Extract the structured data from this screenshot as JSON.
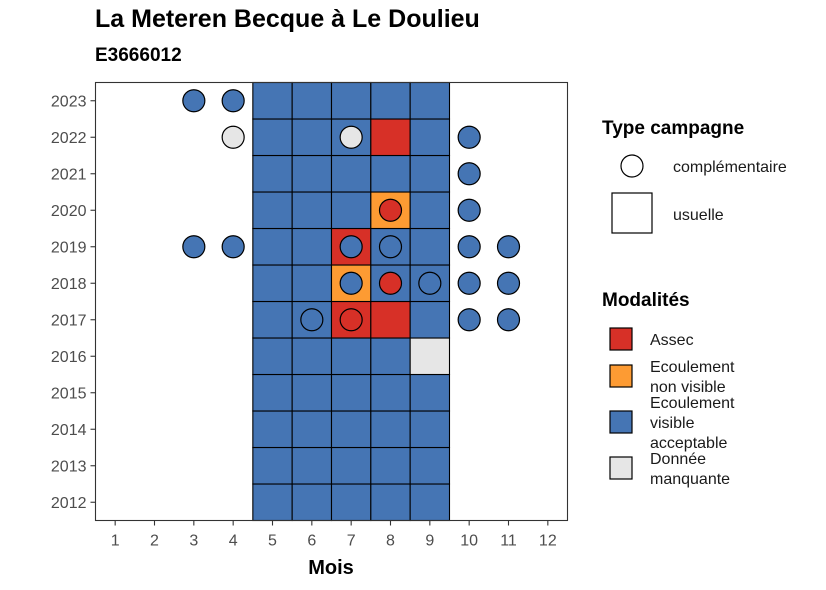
{
  "chart_data": {
    "type": "heatmap",
    "title": "La Meteren Becque à Le Doulieu",
    "subtitle": "E3666012",
    "xlabel": "Mois",
    "ylabel": "",
    "x_ticks": [
      "1",
      "2",
      "3",
      "4",
      "5",
      "6",
      "7",
      "8",
      "9",
      "10",
      "11",
      "12"
    ],
    "y_ticks": [
      "2012",
      "2013",
      "2014",
      "2015",
      "2016",
      "2017",
      "2018",
      "2019",
      "2020",
      "2021",
      "2022",
      "2023"
    ],
    "xlim": [
      0.5,
      12.5
    ],
    "ylim": [
      2011.5,
      2023.5
    ],
    "colors": {
      "Assec": "#d73027",
      "Ecoulement non visible": "#fd9b33",
      "Ecoulement visible acceptable": "#4575b4",
      "Donnée manquante": "#e6e6e6"
    },
    "legends": [
      {
        "title": "Type campagne",
        "entries": [
          "complémentaire",
          "usuelle"
        ]
      },
      {
        "title": "Modalités",
        "entries": [
          [
            "Assec"
          ],
          [
            "Ecoulement",
            "non visible"
          ],
          [
            "Ecoulement",
            "visible",
            "acceptable"
          ],
          [
            "Donnée",
            "manquante"
          ]
        ]
      }
    ],
    "usuelle": [
      {
        "year": 2012,
        "month": 5,
        "value": "Ecoulement visible acceptable"
      },
      {
        "year": 2012,
        "month": 6,
        "value": "Ecoulement visible acceptable"
      },
      {
        "year": 2012,
        "month": 7,
        "value": "Ecoulement visible acceptable"
      },
      {
        "year": 2012,
        "month": 8,
        "value": "Ecoulement visible acceptable"
      },
      {
        "year": 2012,
        "month": 9,
        "value": "Ecoulement visible acceptable"
      },
      {
        "year": 2013,
        "month": 5,
        "value": "Ecoulement visible acceptable"
      },
      {
        "year": 2013,
        "month": 6,
        "value": "Ecoulement visible acceptable"
      },
      {
        "year": 2013,
        "month": 7,
        "value": "Ecoulement visible acceptable"
      },
      {
        "year": 2013,
        "month": 8,
        "value": "Ecoulement visible acceptable"
      },
      {
        "year": 2013,
        "month": 9,
        "value": "Ecoulement visible acceptable"
      },
      {
        "year": 2014,
        "month": 5,
        "value": "Ecoulement visible acceptable"
      },
      {
        "year": 2014,
        "month": 6,
        "value": "Ecoulement visible acceptable"
      },
      {
        "year": 2014,
        "month": 7,
        "value": "Ecoulement visible acceptable"
      },
      {
        "year": 2014,
        "month": 8,
        "value": "Ecoulement visible acceptable"
      },
      {
        "year": 2014,
        "month": 9,
        "value": "Ecoulement visible acceptable"
      },
      {
        "year": 2015,
        "month": 5,
        "value": "Ecoulement visible acceptable"
      },
      {
        "year": 2015,
        "month": 6,
        "value": "Ecoulement visible acceptable"
      },
      {
        "year": 2015,
        "month": 7,
        "value": "Ecoulement visible acceptable"
      },
      {
        "year": 2015,
        "month": 8,
        "value": "Ecoulement visible acceptable"
      },
      {
        "year": 2015,
        "month": 9,
        "value": "Ecoulement visible acceptable"
      },
      {
        "year": 2016,
        "month": 5,
        "value": "Ecoulement visible acceptable"
      },
      {
        "year": 2016,
        "month": 6,
        "value": "Ecoulement visible acceptable"
      },
      {
        "year": 2016,
        "month": 7,
        "value": "Ecoulement visible acceptable"
      },
      {
        "year": 2016,
        "month": 8,
        "value": "Ecoulement visible acceptable"
      },
      {
        "year": 2016,
        "month": 9,
        "value": "Donnée manquante"
      },
      {
        "year": 2017,
        "month": 5,
        "value": "Ecoulement visible acceptable"
      },
      {
        "year": 2017,
        "month": 6,
        "value": "Ecoulement visible acceptable"
      },
      {
        "year": 2017,
        "month": 7,
        "value": "Assec"
      },
      {
        "year": 2017,
        "month": 8,
        "value": "Assec"
      },
      {
        "year": 2017,
        "month": 9,
        "value": "Ecoulement visible acceptable"
      },
      {
        "year": 2018,
        "month": 5,
        "value": "Ecoulement visible acceptable"
      },
      {
        "year": 2018,
        "month": 6,
        "value": "Ecoulement visible acceptable"
      },
      {
        "year": 2018,
        "month": 7,
        "value": "Ecoulement non visible"
      },
      {
        "year": 2018,
        "month": 8,
        "value": "Ecoulement visible acceptable"
      },
      {
        "year": 2018,
        "month": 9,
        "value": "Ecoulement visible acceptable"
      },
      {
        "year": 2019,
        "month": 5,
        "value": "Ecoulement visible acceptable"
      },
      {
        "year": 2019,
        "month": 6,
        "value": "Ecoulement visible acceptable"
      },
      {
        "year": 2019,
        "month": 7,
        "value": "Assec"
      },
      {
        "year": 2019,
        "month": 8,
        "value": "Ecoulement visible acceptable"
      },
      {
        "year": 2019,
        "month": 9,
        "value": "Ecoulement visible acceptable"
      },
      {
        "year": 2020,
        "month": 5,
        "value": "Ecoulement visible acceptable"
      },
      {
        "year": 2020,
        "month": 6,
        "value": "Ecoulement visible acceptable"
      },
      {
        "year": 2020,
        "month": 7,
        "value": "Ecoulement visible acceptable"
      },
      {
        "year": 2020,
        "month": 8,
        "value": "Ecoulement non visible"
      },
      {
        "year": 2020,
        "month": 9,
        "value": "Ecoulement visible acceptable"
      },
      {
        "year": 2021,
        "month": 5,
        "value": "Ecoulement visible acceptable"
      },
      {
        "year": 2021,
        "month": 6,
        "value": "Ecoulement visible acceptable"
      },
      {
        "year": 2021,
        "month": 7,
        "value": "Ecoulement visible acceptable"
      },
      {
        "year": 2021,
        "month": 8,
        "value": "Ecoulement visible acceptable"
      },
      {
        "year": 2021,
        "month": 9,
        "value": "Ecoulement visible acceptable"
      },
      {
        "year": 2022,
        "month": 5,
        "value": "Ecoulement visible acceptable"
      },
      {
        "year": 2022,
        "month": 6,
        "value": "Ecoulement visible acceptable"
      },
      {
        "year": 2022,
        "month": 7,
        "value": "Ecoulement visible acceptable"
      },
      {
        "year": 2022,
        "month": 8,
        "value": "Assec"
      },
      {
        "year": 2022,
        "month": 9,
        "value": "Ecoulement visible acceptable"
      },
      {
        "year": 2023,
        "month": 5,
        "value": "Ecoulement visible acceptable"
      },
      {
        "year": 2023,
        "month": 6,
        "value": "Ecoulement visible acceptable"
      },
      {
        "year": 2023,
        "month": 7,
        "value": "Ecoulement visible acceptable"
      },
      {
        "year": 2023,
        "month": 8,
        "value": "Ecoulement visible acceptable"
      },
      {
        "year": 2023,
        "month": 9,
        "value": "Ecoulement visible acceptable"
      }
    ],
    "complementaire": [
      {
        "year": 2023,
        "month": 3,
        "value": "Ecoulement visible acceptable"
      },
      {
        "year": 2023,
        "month": 4,
        "value": "Ecoulement visible acceptable"
      },
      {
        "year": 2022,
        "month": 4,
        "value": "Donnée manquante"
      },
      {
        "year": 2022,
        "month": 7,
        "value": "Donnée manquante"
      },
      {
        "year": 2022,
        "month": 10,
        "value": "Ecoulement visible acceptable"
      },
      {
        "year": 2021,
        "month": 10,
        "value": "Ecoulement visible acceptable"
      },
      {
        "year": 2020,
        "month": 8,
        "value": "Assec"
      },
      {
        "year": 2020,
        "month": 10,
        "value": "Ecoulement visible acceptable"
      },
      {
        "year": 2019,
        "month": 3,
        "value": "Ecoulement visible acceptable"
      },
      {
        "year": 2019,
        "month": 4,
        "value": "Ecoulement visible acceptable"
      },
      {
        "year": 2019,
        "month": 7,
        "value": "Ecoulement visible acceptable"
      },
      {
        "year": 2019,
        "month": 8,
        "value": "Ecoulement visible acceptable"
      },
      {
        "year": 2019,
        "month": 10,
        "value": "Ecoulement visible acceptable"
      },
      {
        "year": 2019,
        "month": 11,
        "value": "Ecoulement visible acceptable"
      },
      {
        "year": 2018,
        "month": 7,
        "value": "Ecoulement visible acceptable"
      },
      {
        "year": 2018,
        "month": 8,
        "value": "Assec"
      },
      {
        "year": 2018,
        "month": 9,
        "value": "Ecoulement visible acceptable"
      },
      {
        "year": 2018,
        "month": 10,
        "value": "Ecoulement visible acceptable"
      },
      {
        "year": 2018,
        "month": 11,
        "value": "Ecoulement visible acceptable"
      },
      {
        "year": 2017,
        "month": 6,
        "value": "Ecoulement visible acceptable"
      },
      {
        "year": 2017,
        "month": 7,
        "value": "Assec"
      },
      {
        "year": 2017,
        "month": 10,
        "value": "Ecoulement visible acceptable"
      },
      {
        "year": 2017,
        "month": 11,
        "value": "Ecoulement visible acceptable"
      }
    ]
  }
}
